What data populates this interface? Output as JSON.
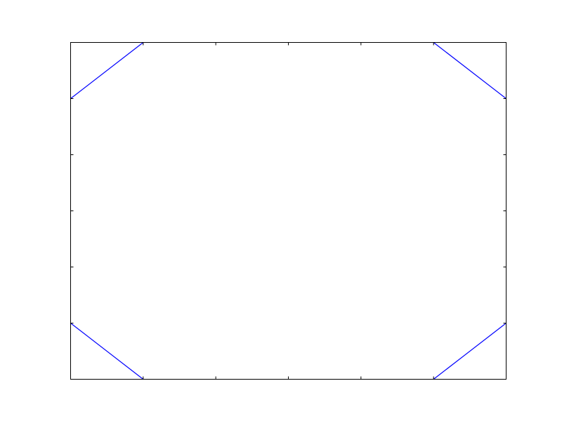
{
  "chart_data": {
    "type": "line",
    "title": "",
    "xlabel": "",
    "ylabel": "",
    "xlim": [
      0,
      6
    ],
    "ylim": [
      0,
      6
    ],
    "x_ticks": [
      0,
      1,
      2,
      3,
      4,
      5,
      6
    ],
    "y_ticks": [
      0,
      1,
      2,
      3,
      4,
      5,
      6
    ],
    "tick_labels_visible": false,
    "grid": false,
    "legend": "none",
    "colors": {
      "line": "#0000ff",
      "axes": "#000000",
      "background": "#ffffff"
    },
    "series": [
      {
        "x": [
          0,
          1
        ],
        "y": [
          5,
          6
        ]
      },
      {
        "x": [
          5,
          6
        ],
        "y": [
          6,
          5
        ]
      },
      {
        "x": [
          0,
          1
        ],
        "y": [
          1,
          0
        ]
      },
      {
        "x": [
          5,
          6
        ],
        "y": [
          0,
          1
        ]
      }
    ]
  }
}
